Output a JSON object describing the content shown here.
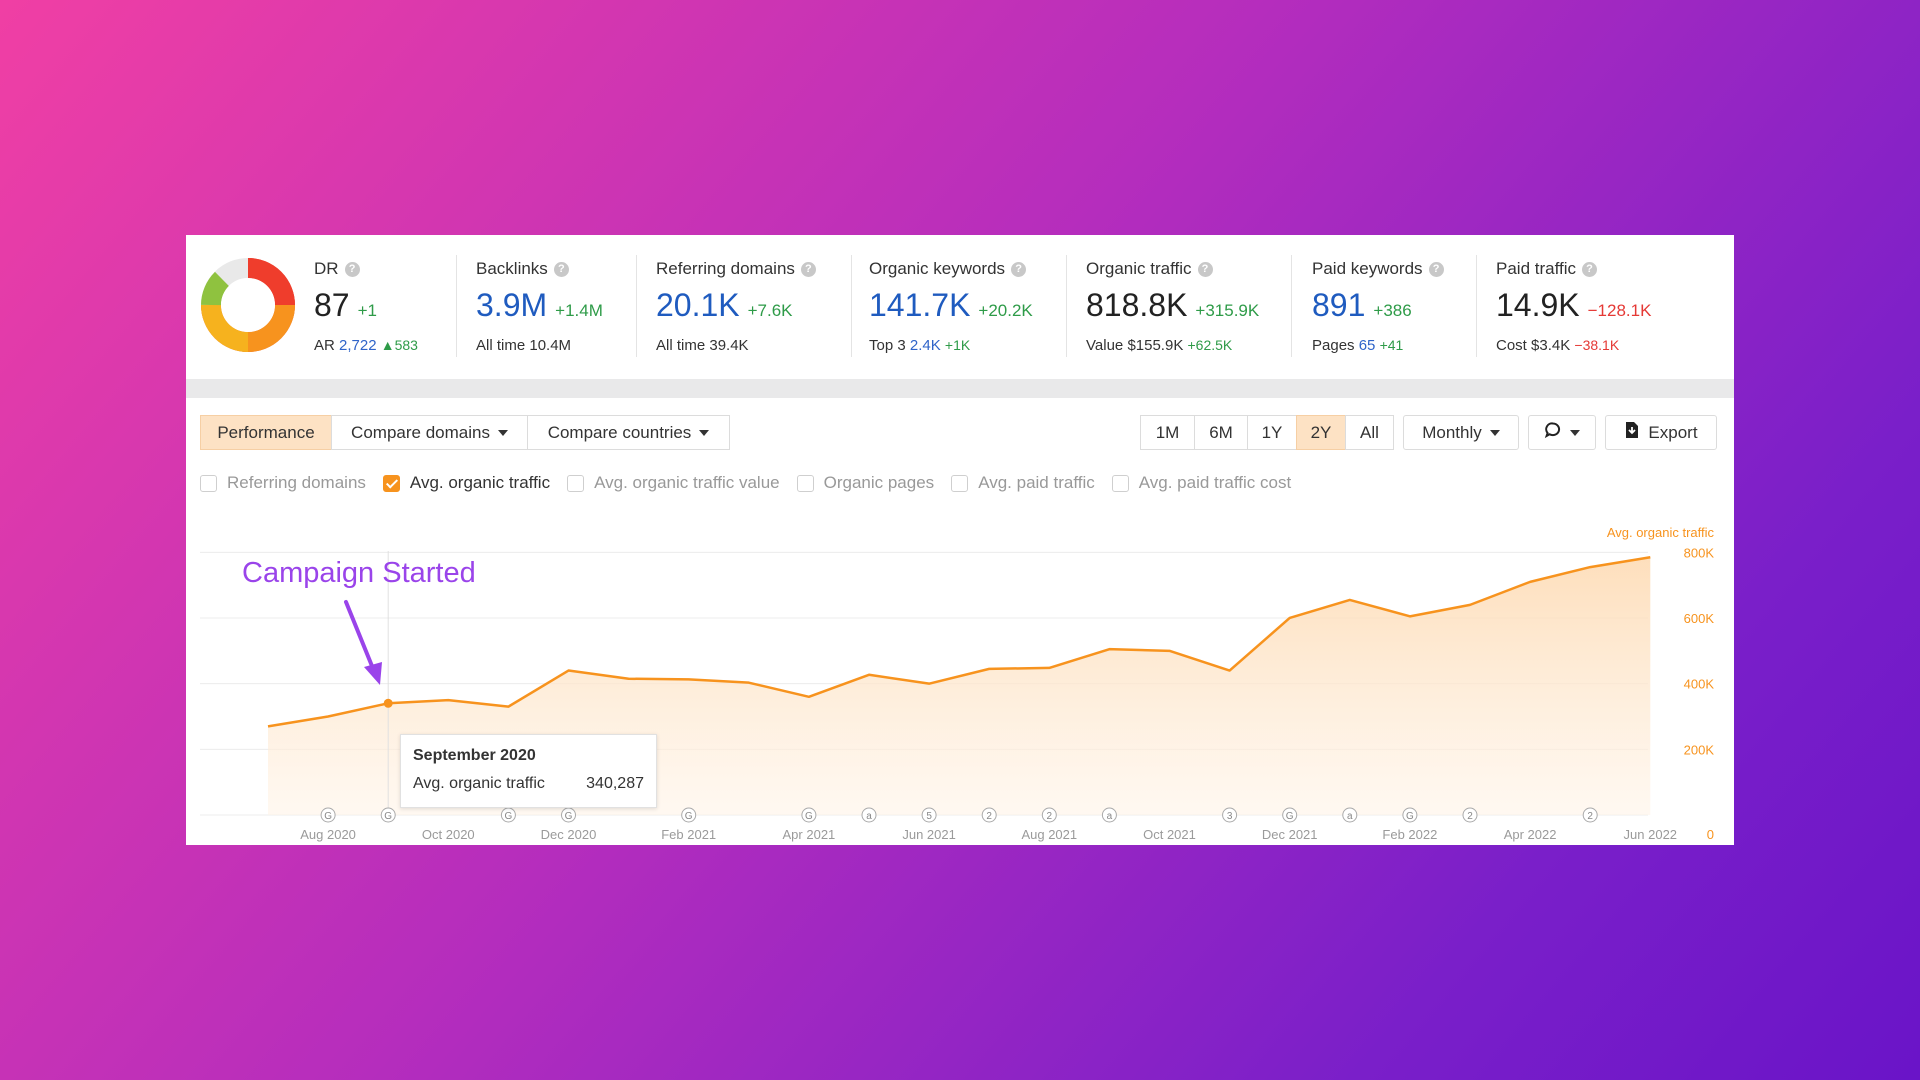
{
  "metrics": [
    {
      "label": "DR",
      "value": "87",
      "delta": "+1",
      "sub_label": "AR",
      "sub_value": "2,722",
      "sub_delta": "▲583",
      "value_color": "dark"
    },
    {
      "label": "Backlinks",
      "value": "3.9M",
      "delta": "+1.4M",
      "sub_label": "All time",
      "sub_value": "10.4M",
      "sub_delta": "",
      "value_color": "blue"
    },
    {
      "label": "Referring domains",
      "value": "20.1K",
      "delta": "+7.6K",
      "sub_label": "All time",
      "sub_value": "39.4K",
      "sub_delta": "",
      "value_color": "blue"
    },
    {
      "label": "Organic keywords",
      "value": "141.7K",
      "delta": "+20.2K",
      "sub_label": "Top 3",
      "sub_value": "2.4K",
      "sub_delta": "+1K",
      "value_color": "blue"
    },
    {
      "label": "Organic traffic",
      "value": "818.8K",
      "delta": "+315.9K",
      "sub_label": "Value",
      "sub_value": "$155.9K",
      "sub_delta": "+62.5K",
      "value_color": "dark"
    },
    {
      "label": "Paid keywords",
      "value": "891",
      "delta": "+386",
      "sub_label": "Pages",
      "sub_value": "65",
      "sub_delta": "+41",
      "value_color": "blue"
    },
    {
      "label": "Paid traffic",
      "value": "14.9K",
      "delta": "−128.1K",
      "sub_label": "Cost",
      "sub_value": "$3.4K",
      "sub_delta": "−38.1K",
      "value_color": "dark"
    }
  ],
  "toolbar": {
    "tabs": [
      "Performance",
      "Compare domains",
      "Compare countries"
    ],
    "ranges": [
      "1M",
      "6M",
      "1Y",
      "2Y",
      "All"
    ],
    "active_range": "2Y",
    "interval": "Monthly",
    "export_label": "Export"
  },
  "checkboxes": [
    {
      "label": "Referring domains",
      "checked": false
    },
    {
      "label": "Avg. organic traffic",
      "checked": true
    },
    {
      "label": "Avg. organic traffic value",
      "checked": false
    },
    {
      "label": "Organic pages",
      "checked": false
    },
    {
      "label": "Avg. paid traffic",
      "checked": false
    },
    {
      "label": "Avg. paid traffic cost",
      "checked": false
    }
  ],
  "annotation": "Campaign Started",
  "tooltip": {
    "month": "September 2020",
    "metric": "Avg. organic traffic",
    "value": "340,287"
  },
  "chart_data": {
    "type": "area",
    "series": [
      {
        "name": "Avg. organic traffic",
        "color": "#f7931e"
      }
    ],
    "x": [
      "Jul 2020",
      "Aug 2020",
      "Sep 2020",
      "Oct 2020",
      "Nov 2020",
      "Dec 2020",
      "Jan 2021",
      "Feb 2021",
      "Mar 2021",
      "Apr 2021",
      "May 2021",
      "Jun 2021",
      "Jul 2021",
      "Aug 2021",
      "Sep 2021",
      "Oct 2021",
      "Nov 2021",
      "Dec 2021",
      "Jan 2022",
      "Feb 2022",
      "Mar 2022",
      "Apr 2022",
      "May 2022",
      "Jun 2022"
    ],
    "values": [
      270000,
      300000,
      340287,
      350000,
      330000,
      440000,
      415000,
      413000,
      403000,
      360000,
      427000,
      400000,
      445000,
      448000,
      505000,
      500000,
      440000,
      600000,
      655000,
      605000,
      640000,
      710000,
      755000,
      785000
    ],
    "x_tick_labels": [
      "Aug 2020",
      "Oct 2020",
      "Dec 2020",
      "Feb 2021",
      "Apr 2021",
      "Jun 2021",
      "Aug 2021",
      "Oct 2021",
      "Dec 2021",
      "Feb 2022",
      "Apr 2022",
      "Jun 2022"
    ],
    "y_ticks": [
      "0",
      "200K",
      "400K",
      "600K",
      "800K"
    ],
    "ylim": [
      0,
      800000
    ],
    "legend": "Avg. organic traffic",
    "legend_position": "top-right",
    "highlight_index": 2,
    "event_markers": [
      {
        "index": 1,
        "glyph": "G"
      },
      {
        "index": 2,
        "glyph": "G"
      },
      {
        "index": 4,
        "glyph": "G"
      },
      {
        "index": 5,
        "glyph": "G"
      },
      {
        "index": 7,
        "glyph": "G"
      },
      {
        "index": 9,
        "glyph": "G"
      },
      {
        "index": 10,
        "glyph": "a"
      },
      {
        "index": 11,
        "glyph": "5"
      },
      {
        "index": 12,
        "glyph": "2"
      },
      {
        "index": 13,
        "glyph": "2"
      },
      {
        "index": 14,
        "glyph": "a"
      },
      {
        "index": 16,
        "glyph": "3"
      },
      {
        "index": 17,
        "glyph": "G"
      },
      {
        "index": 18,
        "glyph": "a"
      },
      {
        "index": 19,
        "glyph": "G"
      },
      {
        "index": 20,
        "glyph": "2"
      },
      {
        "index": 22,
        "glyph": "2"
      }
    ]
  },
  "icons": {
    "help": "help-icon",
    "comment": "comment-icon",
    "export": "export-icon",
    "caret": "chevron-down-icon"
  }
}
